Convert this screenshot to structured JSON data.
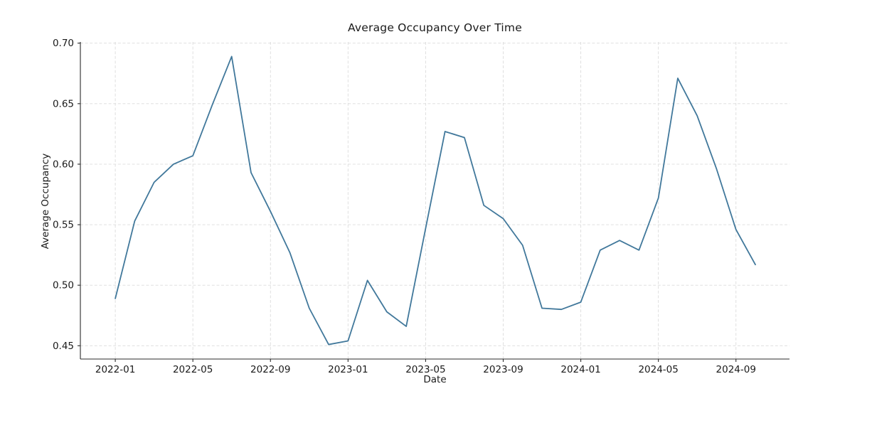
{
  "chart_data": {
    "type": "line",
    "title": "Average Occupancy Over Time",
    "xlabel": "Date",
    "ylabel": "Average Occupancy",
    "x": [
      "2022-01",
      "2022-02",
      "2022-03",
      "2022-04",
      "2022-05",
      "2022-06",
      "2022-07",
      "2022-08",
      "2022-09",
      "2022-10",
      "2022-11",
      "2022-12",
      "2023-01",
      "2023-02",
      "2023-03",
      "2023-04",
      "2023-05",
      "2023-06",
      "2023-07",
      "2023-08",
      "2023-09",
      "2023-10",
      "2023-11",
      "2023-12",
      "2024-01",
      "2024-02",
      "2024-03",
      "2024-04",
      "2024-05",
      "2024-06",
      "2024-07",
      "2024-08",
      "2024-09",
      "2024-10"
    ],
    "values": [
      0.489,
      0.553,
      0.585,
      0.6,
      0.607,
      0.649,
      0.689,
      0.593,
      0.561,
      0.527,
      0.481,
      0.451,
      0.454,
      0.504,
      0.478,
      0.466,
      0.547,
      0.627,
      0.622,
      0.566,
      0.555,
      0.533,
      0.481,
      0.48,
      0.486,
      0.529,
      0.537,
      0.529,
      0.572,
      0.671,
      0.64,
      0.596,
      0.546,
      0.517
    ],
    "x_tick_labels": [
      "2022-01",
      "2022-05",
      "2022-09",
      "2023-01",
      "2023-05",
      "2023-09",
      "2024-01",
      "2024-05",
      "2024-09"
    ],
    "x_tick_indices": [
      0,
      4,
      8,
      12,
      16,
      20,
      24,
      28,
      32
    ],
    "y_ticks": [
      "0.45",
      "0.50",
      "0.55",
      "0.60",
      "0.65",
      "0.70"
    ],
    "y_tick_values": [
      0.45,
      0.5,
      0.55,
      0.6,
      0.65,
      0.7
    ],
    "ylim": [
      0.439,
      0.701
    ],
    "xlim_month_index": [
      -1.8,
      34.76
    ],
    "grid": true,
    "legend": "none",
    "colors": {
      "line": "#41789b",
      "grid": "#dcdcdc",
      "spine": "#2b2b2b",
      "text": "#1a1a1a",
      "background": "#ffffff"
    }
  }
}
